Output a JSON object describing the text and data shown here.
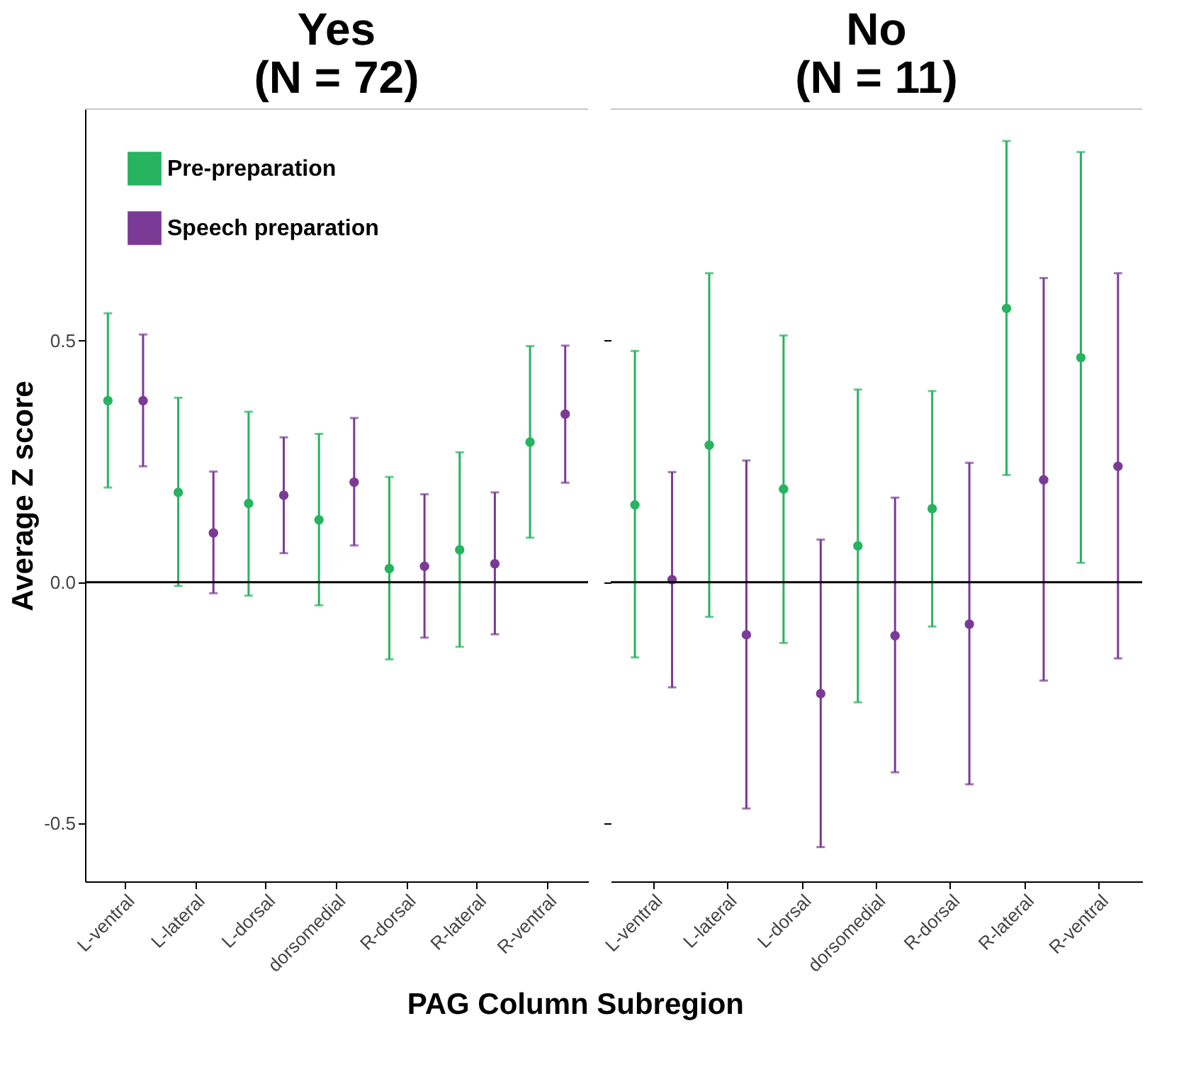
{
  "chart_data": [
    {
      "type": "scatter",
      "title": "Yes\n(N = 72)",
      "ylabel": "Average Z score",
      "xlabel": "PAG Column Subregion",
      "categories": [
        "L-ventral",
        "L-lateral",
        "L-dorsal",
        "dorsomedial",
        "R-dorsal",
        "R-lateral",
        "R-ventral"
      ],
      "series": [
        {
          "name": "Pre-preparation",
          "color": "#27b35f",
          "values": [
            0.376,
            0.186,
            0.163,
            0.129,
            0.028,
            0.067,
            0.29
          ],
          "errors": [
            [
              0.196,
              0.557
            ],
            [
              -0.008,
              0.382
            ],
            [
              -0.028,
              0.353
            ],
            [
              -0.048,
              0.307
            ],
            [
              -0.16,
              0.218
            ],
            [
              -0.134,
              0.269
            ],
            [
              0.092,
              0.489
            ]
          ]
        },
        {
          "name": "Speech preparation",
          "color": "#7b3a96",
          "values": [
            0.376,
            0.102,
            0.18,
            0.207,
            0.033,
            0.038,
            0.348
          ],
          "errors": [
            [
              0.24,
              0.513
            ],
            [
              -0.023,
              0.229
            ],
            [
              0.06,
              0.3
            ],
            [
              0.076,
              0.34
            ],
            [
              -0.115,
              0.182
            ],
            [
              -0.108,
              0.186
            ],
            [
              0.206,
              0.49
            ]
          ]
        }
      ],
      "ylim": [
        -0.62,
        0.98
      ],
      "yticks": [
        -0.5,
        {
          "value": 0,
          "label": "0.0"
        },
        0.5
      ],
      "ref_lines": [
        {
          "axis": "y",
          "value": 0,
          "color": "#000000"
        }
      ],
      "grid": false,
      "legend": "top left",
      "marker": "circle"
    },
    {
      "type": "scatter",
      "title": "No\n(N = 11)",
      "categories": [
        "L-ventral",
        "L-lateral",
        "L-dorsal",
        "dorsomedial",
        "R-dorsal",
        "R-lateral",
        "R-ventral"
      ],
      "series": [
        {
          "color": "#27b35f",
          "values": [
            0.16,
            0.284,
            0.193,
            0.075,
            0.152,
            0.567,
            0.465
          ],
          "errors": [
            [
              -0.156,
              0.479
            ],
            [
              -0.072,
              0.64
            ],
            [
              -0.126,
              0.511
            ],
            [
              -0.249,
              0.399
            ],
            [
              -0.092,
              0.396
            ],
            [
              0.222,
              0.914
            ],
            [
              0.04,
              0.891
            ]
          ]
        },
        {
          "color": "#7b3a96",
          "values": [
            0.005,
            -0.109,
            -0.231,
            -0.111,
            -0.087,
            0.212,
            0.24
          ],
          "errors": [
            [
              -0.218,
              0.228
            ],
            [
              -0.469,
              0.252
            ],
            [
              -0.549,
              0.088
            ],
            [
              -0.394,
              0.175
            ],
            [
              -0.419,
              0.247
            ],
            [
              -0.204,
              0.63
            ],
            [
              -0.158,
              0.64
            ]
          ]
        }
      ],
      "ylim": [
        -0.62,
        0.98
      ],
      "yticks": [
        -0.5,
        0,
        0.5
      ],
      "ref_lines": [
        {
          "axis": "y",
          "value": 0,
          "color": "#000000"
        }
      ],
      "grid": false,
      "legend": false,
      "marker": "circle",
      "tick_labels": "x"
    }
  ]
}
